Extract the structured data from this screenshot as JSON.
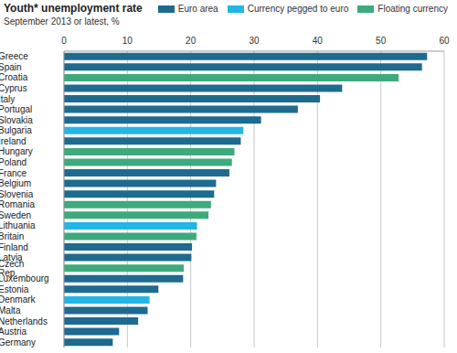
{
  "chart_data": {
    "type": "bar",
    "orientation": "horizontal",
    "stacked": true,
    "title": "Youth* unemployment rate",
    "subtitle": "September 2013 or latest, %",
    "legend": "top",
    "grid": true,
    "categories": [
      "Greece",
      "Spain",
      "Croatia",
      "Cyprus",
      "Italy",
      "Portugal",
      "Slovakia",
      "Bulgaria",
      "Ireland",
      "Hungary",
      "Poland",
      "France",
      "Belgium",
      "Slovenia",
      "Romania",
      "Sweden",
      "Lithuania",
      "Britain",
      "Finland",
      "Latvia",
      "Czech Rep.",
      "Luxembourg",
      "Estonia",
      "Denmark",
      "Malta",
      "Netherlands",
      "Austria",
      "Germany"
    ],
    "series": [
      {
        "name": "Euro area",
        "color": "#1e6b8f",
        "values": [
          57.3,
          56.5,
          null,
          43.9,
          40.4,
          36.9,
          31.1,
          null,
          27.9,
          null,
          null,
          26.1,
          24.0,
          23.7,
          null,
          null,
          null,
          null,
          20.2,
          20.1,
          null,
          18.8,
          14.9,
          null,
          13.2,
          11.7,
          8.7,
          7.7
        ]
      },
      {
        "name": "Currency pegged to euro",
        "color": "#22b6e6",
        "values": [
          null,
          null,
          null,
          null,
          null,
          null,
          null,
          28.3,
          null,
          null,
          null,
          null,
          null,
          null,
          null,
          null,
          21.0,
          null,
          null,
          null,
          null,
          null,
          null,
          13.5,
          null,
          null,
          null,
          null
        ]
      },
      {
        "name": "Floating currency",
        "color": "#3daa7c",
        "values": [
          null,
          null,
          52.8,
          null,
          null,
          null,
          null,
          null,
          null,
          26.9,
          26.5,
          null,
          null,
          null,
          23.2,
          22.8,
          null,
          20.9,
          null,
          null,
          18.9,
          null,
          null,
          null,
          null,
          null,
          null,
          null
        ]
      }
    ],
    "xlim": [
      0,
      60
    ],
    "xticks": [
      0,
      10,
      20,
      30,
      40,
      50,
      60
    ]
  }
}
